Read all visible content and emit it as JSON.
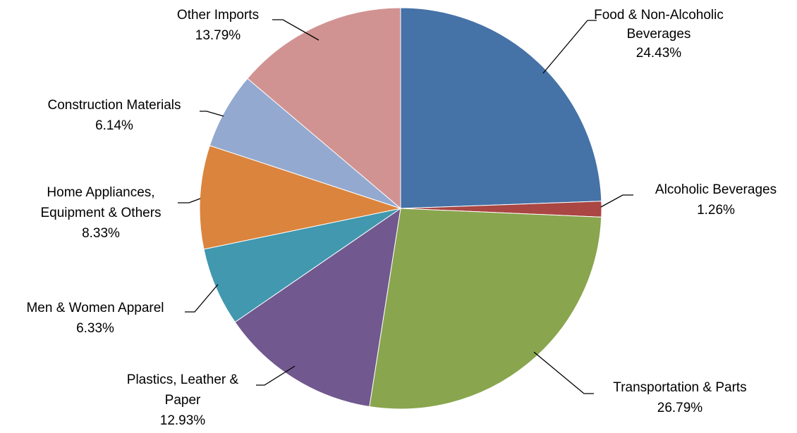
{
  "chart_data": {
    "type": "pie",
    "title": "",
    "legend": "none",
    "slices": [
      {
        "name": "Food & Non-Alcoholic Beverages",
        "label_lines": [
          "Food & Non-Alcoholic",
          "Beverages"
        ],
        "pct_label": "24.43%",
        "value": 24.43,
        "color": "#4572A7"
      },
      {
        "name": "Alcoholic Beverages",
        "label_lines": [
          "Alcoholic Beverages"
        ],
        "pct_label": "1.26%",
        "value": 1.26,
        "color": "#AA4643"
      },
      {
        "name": "Transportation & Parts",
        "label_lines": [
          "Transportation & Parts"
        ],
        "pct_label": "26.79%",
        "value": 26.79,
        "color": "#89A54E"
      },
      {
        "name": "Plastics, Leather & Paper",
        "label_lines": [
          "Plastics, Leather &",
          "Paper"
        ],
        "pct_label": "12.93%",
        "value": 12.93,
        "color": "#71588F"
      },
      {
        "name": "Men & Women Apparel",
        "label_lines": [
          "Men & Women Apparel"
        ],
        "pct_label": "6.33%",
        "value": 6.33,
        "color": "#4198AF"
      },
      {
        "name": "Home Appliances, Equipment & Others",
        "label_lines": [
          "Home Appliances,",
          "Equipment & Others"
        ],
        "pct_label": "8.33%",
        "value": 8.33,
        "color": "#DB843D"
      },
      {
        "name": "Construction Materials",
        "label_lines": [
          "Construction Materials"
        ],
        "pct_label": "6.14%",
        "value": 6.14,
        "color": "#93A9CF"
      },
      {
        "name": "Other Imports",
        "label_lines": [
          "Other Imports"
        ],
        "pct_label": "13.79%",
        "value": 13.79,
        "color": "#D19392"
      }
    ]
  }
}
